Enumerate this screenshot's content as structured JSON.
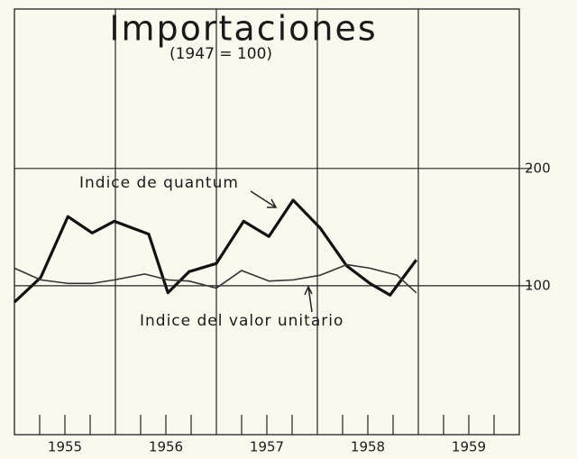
{
  "chart_data": {
    "type": "line",
    "title": "Importaciones",
    "subtitle": "(1947 = 100)",
    "annotations": [
      "Indice de quantum",
      "Indice del valor unitario"
    ],
    "xlim": [
      1955,
      1960
    ],
    "xticks": [
      {
        "value": 1955.5,
        "label": "1955"
      },
      {
        "value": 1956.5,
        "label": "1956"
      },
      {
        "value": 1957.5,
        "label": "1957"
      },
      {
        "value": 1958.5,
        "label": "1958"
      },
      {
        "value": 1959.5,
        "label": "1959"
      }
    ],
    "ylim": [
      -27,
      336
    ],
    "yticks": [
      100,
      200
    ],
    "grid": true,
    "series": [
      {
        "name": "Indice de quantum",
        "color": "#111111",
        "x": [
          1955.0,
          1955.26,
          1955.53,
          1955.77,
          1955.99,
          1956.33,
          1956.52,
          1956.73,
          1957.0,
          1957.27,
          1957.52,
          1957.76,
          1958.03,
          1958.29,
          1958.52,
          1958.72,
          1958.98
        ],
        "values": [
          86,
          107,
          159,
          145,
          155,
          144,
          94,
          112,
          119,
          155,
          142,
          173,
          149,
          117,
          102,
          92,
          122
        ]
      },
      {
        "name": "Indice del valor unitario",
        "color": "#333333",
        "x": [
          1955.0,
          1955.26,
          1955.53,
          1955.77,
          1955.99,
          1956.29,
          1956.52,
          1956.73,
          1957.0,
          1957.25,
          1957.52,
          1957.76,
          1958.03,
          1958.29,
          1958.52,
          1958.79,
          1958.98
        ],
        "values": [
          115,
          105,
          102,
          102,
          105,
          110,
          105,
          104,
          98,
          113,
          104,
          105,
          109,
          118,
          115,
          109,
          94
        ]
      }
    ]
  }
}
